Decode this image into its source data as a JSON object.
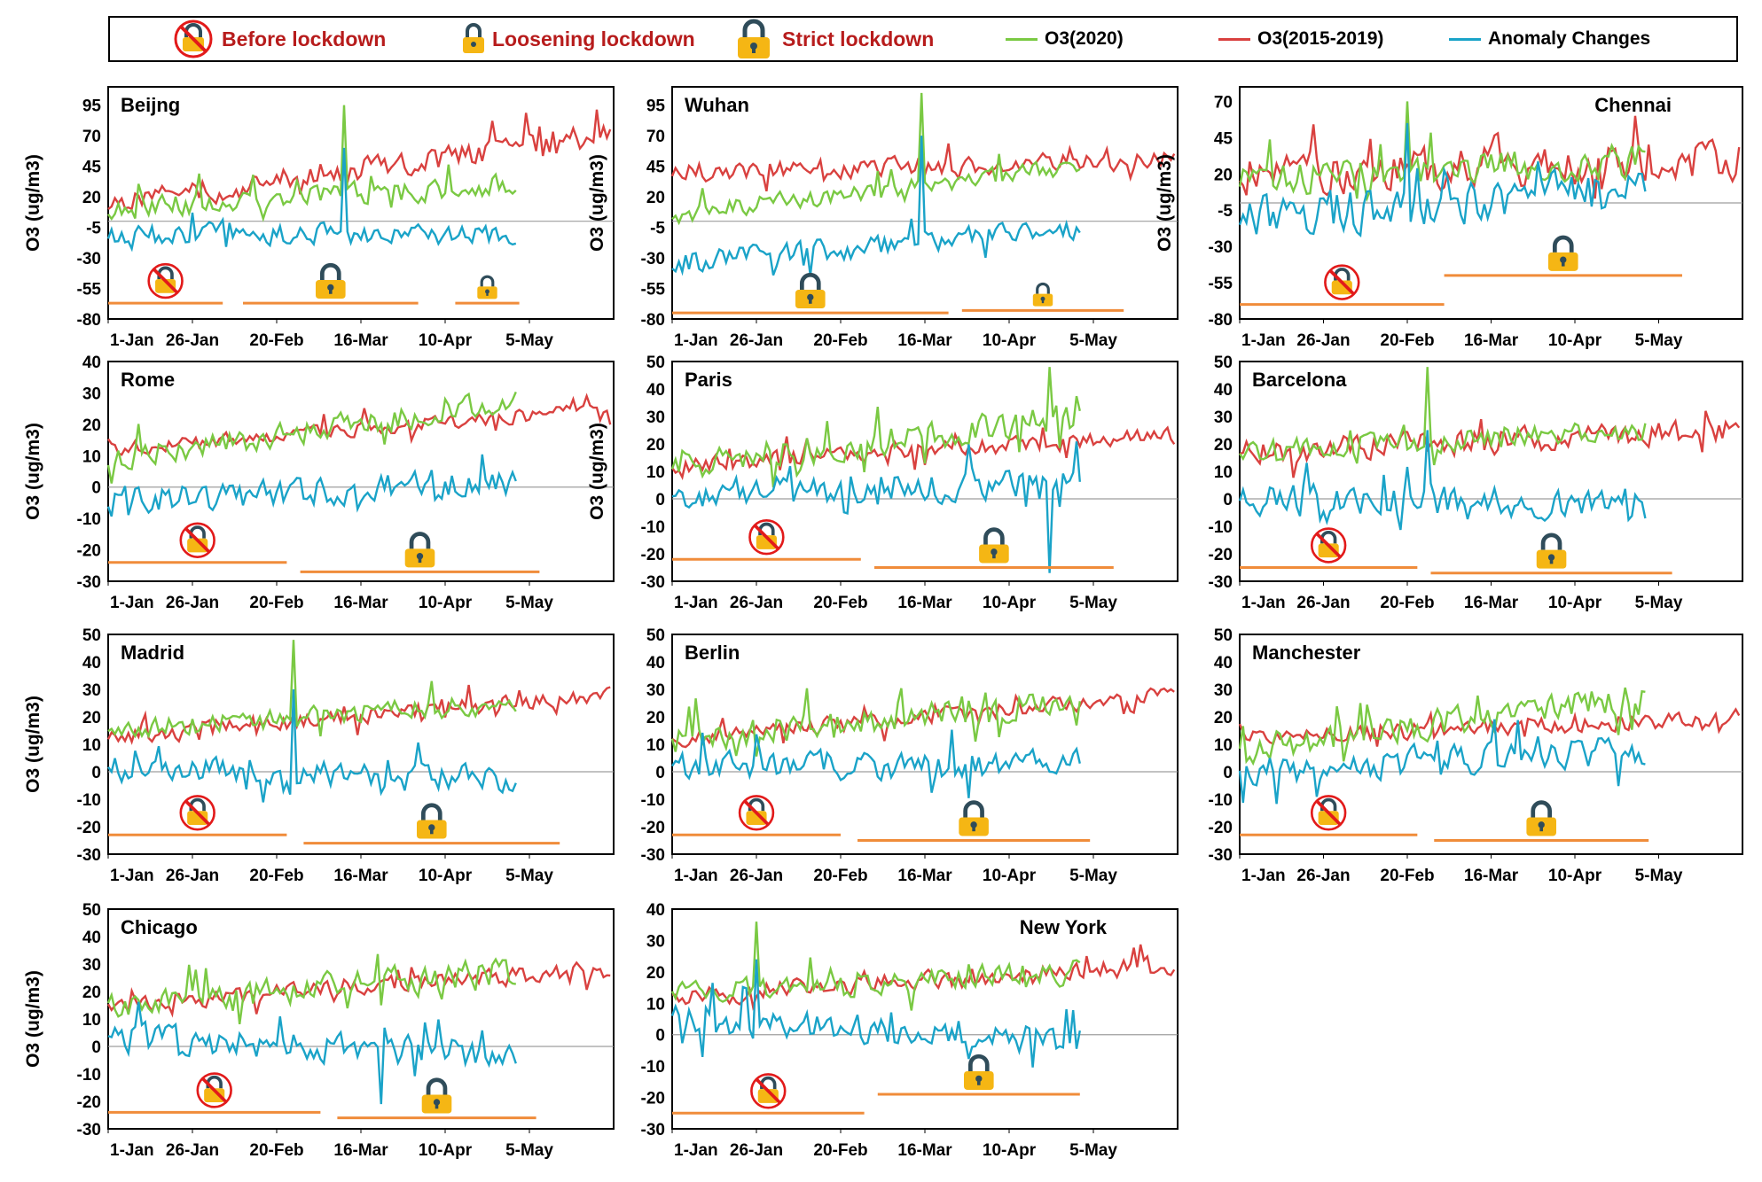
{
  "legend": {
    "before": "Before lockdown",
    "loosening": "Loosening lockdown",
    "strict": "Strict lockdown",
    "o3_2020": "O3(2020)",
    "o3_2015_2019": "O3(2015-2019)",
    "anomaly": "Anomaly Changes"
  },
  "colors": {
    "o3_2020": "#7ac943",
    "o3_hist": "#d9413f",
    "anomaly": "#1aa3c8",
    "period_line": "#f08c3a",
    "lock_body": "#f5b614",
    "lock_shackle": "#2f4c5a",
    "no_sign": "#e21a1a",
    "legend_red": "#b71c1c"
  },
  "chart_data": [
    {
      "type": "line",
      "title": "Beijng",
      "title_pos": "left",
      "ylabel": "O3 (ug/m3)",
      "yticks": [
        95,
        70,
        45,
        20,
        -5,
        -30,
        -55,
        -80
      ],
      "ylim": [
        -80,
        110
      ],
      "xticks": [
        "1-Jan",
        "26-Jan",
        "20-Feb",
        "16-Mar",
        "10-Apr",
        "5-May"
      ],
      "green_base": [
        10,
        30
      ],
      "green_amp": 12,
      "red_base": [
        15,
        70
      ],
      "red_amp": 14,
      "spike": {
        "day": 70,
        "green": 95,
        "anomaly": 60
      },
      "anomaly_base": [
        -10,
        -10
      ],
      "anomaly_amp": 12,
      "periods": [
        {
          "type": "before",
          "start": 0,
          "end": 34,
          "y": -67
        },
        {
          "type": "strict",
          "start": 40,
          "end": 92,
          "y": -67
        },
        {
          "type": "loosening",
          "start": 103,
          "end": 122,
          "y": -67
        }
      ]
    },
    {
      "type": "line",
      "title": "Wuhan",
      "title_pos": "left",
      "ylabel": "O3 (ug/m3)",
      "yticks": [
        95,
        70,
        45,
        20,
        -5,
        -30,
        -55,
        -80
      ],
      "ylim": [
        -80,
        110
      ],
      "xticks": [
        "1-Jan",
        "26-Jan",
        "20-Feb",
        "16-Mar",
        "10-Apr",
        "5-May"
      ],
      "green_base": [
        5,
        45
      ],
      "green_amp": 10,
      "red_base": [
        40,
        50
      ],
      "red_amp": 10,
      "spike": {
        "day": 74,
        "green": 105,
        "anomaly": 70
      },
      "anomaly_base": [
        -35,
        -5
      ],
      "anomaly_amp": 12,
      "periods": [
        {
          "type": "strict",
          "start": 0,
          "end": 82,
          "y": -75
        },
        {
          "type": "loosening",
          "start": 86,
          "end": 134,
          "y": -73
        }
      ]
    },
    {
      "type": "line",
      "title": "Chennai",
      "title_pos": "right",
      "ylabel": "O3 (ug/m3)",
      "yticks": [
        70,
        45,
        20,
        -5,
        -30,
        -55,
        -80
      ],
      "ylim": [
        -80,
        80
      ],
      "xticks": [
        "1-Jan",
        "26-Jan",
        "20-Feb",
        "16-Mar",
        "10-Apr",
        "5-May"
      ],
      "green_base": [
        15,
        30
      ],
      "green_amp": 15,
      "red_base": [
        20,
        30
      ],
      "red_amp": 18,
      "spike": {
        "day": 50,
        "green": 70,
        "anomaly": 55
      },
      "anomaly_base": [
        -10,
        10
      ],
      "anomaly_amp": 20,
      "periods": [
        {
          "type": "before",
          "start": 0,
          "end": 61,
          "y": -70
        },
        {
          "type": "strict",
          "start": 61,
          "end": 132,
          "y": -50
        }
      ]
    },
    {
      "type": "line",
      "title": "Rome",
      "title_pos": "left",
      "ylabel": "O3 (ug/m3)",
      "yticks": [
        40,
        30,
        20,
        10,
        0,
        -10,
        -20,
        -30
      ],
      "ylim": [
        -30,
        40
      ],
      "xticks": [
        "1-Jan",
        "26-Jan",
        "20-Feb",
        "16-Mar",
        "10-Apr",
        "5-May"
      ],
      "green_base": [
        8,
        28
      ],
      "green_amp": 5,
      "red_base": [
        12,
        25
      ],
      "red_amp": 3,
      "spike": null,
      "anomaly_base": [
        -5,
        2
      ],
      "anomaly_amp": 6,
      "periods": [
        {
          "type": "before",
          "start": 0,
          "end": 53,
          "y": -24
        },
        {
          "type": "strict",
          "start": 57,
          "end": 128,
          "y": -27
        }
      ]
    },
    {
      "type": "line",
      "title": "Paris",
      "title_pos": "left",
      "ylabel": "O3 (ug/m3)",
      "yticks": [
        50,
        40,
        30,
        20,
        10,
        0,
        -10,
        -20,
        -30
      ],
      "ylim": [
        -30,
        50
      ],
      "xticks": [
        "1-Jan",
        "26-Jan",
        "20-Feb",
        "16-Mar",
        "10-Apr",
        "5-May"
      ],
      "green_base": [
        12,
        30
      ],
      "green_amp": 7,
      "red_base": [
        12,
        23
      ],
      "red_amp": 4,
      "spike": {
        "day": 112,
        "green": 48,
        "anomaly": -27
      },
      "anomaly_base": [
        2,
        6
      ],
      "anomaly_amp": 7,
      "periods": [
        {
          "type": "before",
          "start": 0,
          "end": 56,
          "y": -22
        },
        {
          "type": "strict",
          "start": 60,
          "end": 131,
          "y": -25
        }
      ]
    },
    {
      "type": "line",
      "title": "Barcelona",
      "title_pos": "left",
      "ylabel": "",
      "yticks": [
        50,
        40,
        30,
        20,
        10,
        0,
        -10,
        -20,
        -30
      ],
      "ylim": [
        -30,
        50
      ],
      "xticks": [
        "1-Jan",
        "26-Jan",
        "20-Feb",
        "16-Mar",
        "10-Apr",
        "5-May"
      ],
      "green_base": [
        17,
        25
      ],
      "green_amp": 5,
      "red_base": [
        17,
        25
      ],
      "red_amp": 6,
      "spike": {
        "day": 56,
        "green": 48,
        "anomaly": 25
      },
      "anomaly_base": [
        0,
        -2
      ],
      "anomaly_amp": 7,
      "periods": [
        {
          "type": "before",
          "start": 0,
          "end": 53,
          "y": -25
        },
        {
          "type": "strict",
          "start": 57,
          "end": 129,
          "y": -27
        }
      ]
    },
    {
      "type": "line",
      "title": "Madrid",
      "title_pos": "left",
      "ylabel": "O3 (ug/m3)",
      "yticks": [
        50,
        40,
        30,
        20,
        10,
        0,
        -10,
        -20,
        -30
      ],
      "ylim": [
        -30,
        50
      ],
      "xticks": [
        "1-Jan",
        "26-Jan",
        "20-Feb",
        "16-Mar",
        "10-Apr",
        "5-May"
      ],
      "green_base": [
        15,
        25
      ],
      "green_amp": 5,
      "red_base": [
        12,
        28
      ],
      "red_amp": 4,
      "spike": {
        "day": 55,
        "green": 48,
        "anomaly": 30
      },
      "anomaly_base": [
        2,
        -3
      ],
      "anomaly_amp": 6,
      "periods": [
        {
          "type": "before",
          "start": 0,
          "end": 53,
          "y": -23
        },
        {
          "type": "strict",
          "start": 58,
          "end": 134,
          "y": -26
        }
      ]
    },
    {
      "type": "line",
      "title": "Berlin",
      "title_pos": "left",
      "ylabel": "",
      "yticks": [
        50,
        40,
        30,
        20,
        10,
        0,
        -10,
        -20,
        -30
      ],
      "ylim": [
        -30,
        50
      ],
      "xticks": [
        "1-Jan",
        "26-Jan",
        "20-Feb",
        "16-Mar",
        "10-Apr",
        "5-May"
      ],
      "green_base": [
        12,
        27
      ],
      "green_amp": 7,
      "red_base": [
        12,
        28
      ],
      "red_amp": 4,
      "spike": null,
      "anomaly_base": [
        2,
        3
      ],
      "anomaly_amp": 7,
      "periods": [
        {
          "type": "before",
          "start": 0,
          "end": 50,
          "y": -23
        },
        {
          "type": "strict",
          "start": 55,
          "end": 124,
          "y": -25
        }
      ]
    },
    {
      "type": "line",
      "title": "Manchester",
      "title_pos": "left",
      "ylabel": "",
      "yticks": [
        50,
        40,
        30,
        20,
        10,
        0,
        -10,
        -20,
        -30
      ],
      "ylim": [
        -30,
        50
      ],
      "xticks": [
        "1-Jan",
        "26-Jan",
        "20-Feb",
        "16-Mar",
        "10-Apr",
        "5-May"
      ],
      "green_base": [
        8,
        28
      ],
      "green_amp": 7,
      "red_base": [
        12,
        20
      ],
      "red_amp": 4,
      "spike": null,
      "anomaly_base": [
        0,
        8
      ],
      "anomaly_amp": 7,
      "periods": [
        {
          "type": "before",
          "start": 0,
          "end": 53,
          "y": -23
        },
        {
          "type": "strict",
          "start": 58,
          "end": 122,
          "y": -25
        }
      ]
    },
    {
      "type": "line",
      "title": "Chicago",
      "title_pos": "left",
      "ylabel": "O3 (ug/m3)",
      "yticks": [
        50,
        40,
        30,
        20,
        10,
        0,
        -10,
        -20,
        -30
      ],
      "ylim": [
        -30,
        50
      ],
      "xticks": [
        "1-Jan",
        "26-Jan",
        "20-Feb",
        "16-Mar",
        "10-Apr",
        "5-May"
      ],
      "green_base": [
        15,
        27
      ],
      "green_amp": 7,
      "red_base": [
        15,
        28
      ],
      "red_amp": 4,
      "spike": {
        "day": 81,
        "green": 15,
        "anomaly": -21
      },
      "anomaly_base": [
        3,
        -3
      ],
      "anomaly_amp": 7,
      "periods": [
        {
          "type": "before",
          "start": 0,
          "end": 63,
          "y": -24
        },
        {
          "type": "strict",
          "start": 68,
          "end": 127,
          "y": -26
        }
      ]
    },
    {
      "type": "line",
      "title": "New York",
      "title_pos": "right",
      "ylabel": "",
      "yticks": [
        40,
        30,
        20,
        10,
        0,
        -10,
        -20,
        -30
      ],
      "ylim": [
        -30,
        40
      ],
      "xticks": [
        "1-Jan",
        "26-Jan",
        "20-Feb",
        "16-Mar",
        "10-Apr",
        "5-May"
      ],
      "green_base": [
        13,
        20
      ],
      "green_amp": 5,
      "red_base": [
        12,
        22
      ],
      "red_amp": 4,
      "spike": {
        "day": 25,
        "green": 36,
        "anomaly": 24
      },
      "anomaly_base": [
        5,
        -2
      ],
      "anomaly_amp": 6,
      "periods": [
        {
          "type": "before",
          "start": 0,
          "end": 57,
          "y": -25
        },
        {
          "type": "strict",
          "start": 61,
          "end": 121,
          "y": -19
        }
      ]
    }
  ]
}
